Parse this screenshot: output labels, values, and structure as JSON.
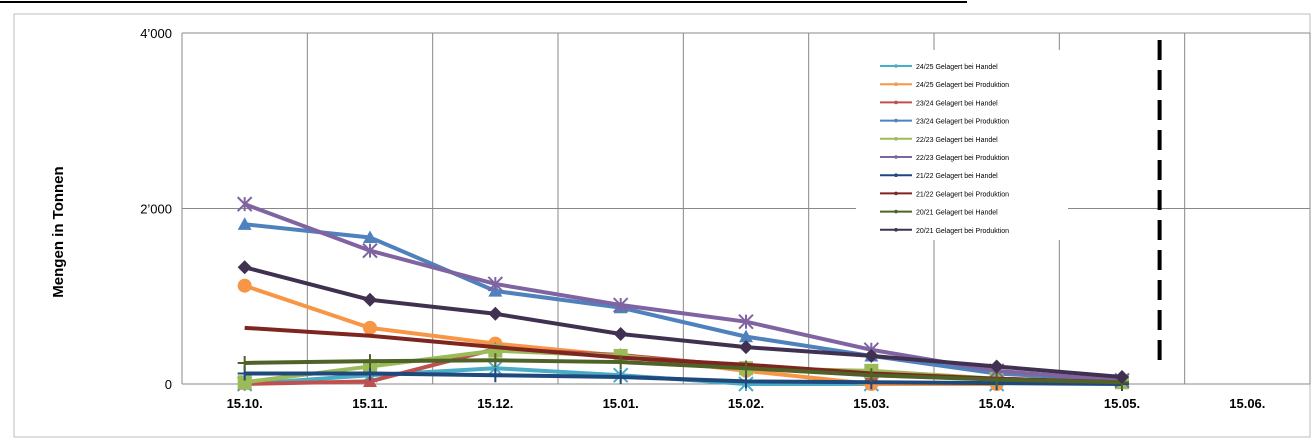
{
  "chart_data": {
    "type": "line",
    "title": "",
    "xlabel": "",
    "ylabel": "Mengen in Tonnen",
    "categories": [
      "15.10.",
      "15.11.",
      "15.12.",
      "15.01.",
      "15.02.",
      "15.03.",
      "15.04.",
      "15.05.",
      "15.06."
    ],
    "ylim": [
      0,
      4000
    ],
    "yticks": [
      0,
      2000,
      4000
    ],
    "ytick_labels": [
      "0",
      "2’000",
      "4’000"
    ],
    "grid": true,
    "legend_position": "top-right",
    "marker_line_position": 7.3,
    "series": [
      {
        "name": "24/25 Gelagert bei Handel",
        "color": "#4bacc6",
        "marker": "x",
        "values": [
          0,
          100,
          180,
          100,
          0,
          0,
          0,
          null,
          null
        ]
      },
      {
        "name": "24/25 Gelagert bei Produktion",
        "color": "#f79646",
        "marker": "circle",
        "values": [
          1120,
          640,
          460,
          320,
          150,
          0,
          0,
          null,
          null
        ]
      },
      {
        "name": "23/24 Gelagert bei Handel",
        "color": "#c0504d",
        "marker": "triangle",
        "values": [
          0,
          30,
          400,
          330,
          200,
          100,
          60,
          20,
          null
        ]
      },
      {
        "name": "23/24 Gelagert bei Produktion",
        "color": "#4f81bd",
        "marker": "triangle",
        "values": [
          1820,
          1670,
          1060,
          870,
          540,
          320,
          120,
          40,
          null
        ]
      },
      {
        "name": "22/23 Gelagert bei Handel",
        "color": "#9bbb59",
        "marker": "square",
        "values": [
          20,
          200,
          380,
          320,
          180,
          150,
          60,
          20,
          null
        ]
      },
      {
        "name": "22/23 Gelagert bei Produktion",
        "color": "#8064a2",
        "marker": "x",
        "values": [
          2050,
          1520,
          1140,
          900,
          710,
          390,
          150,
          40,
          null
        ]
      },
      {
        "name": "21/22 Gelagert bei Handel",
        "color": "#1f497d",
        "marker": "plus",
        "values": [
          120,
          120,
          100,
          80,
          30,
          20,
          10,
          0,
          null
        ]
      },
      {
        "name": "21/22 Gelagert bei Produktion",
        "color": "#7f2520",
        "marker": "none",
        "values": [
          640,
          550,
          420,
          300,
          220,
          120,
          60,
          20,
          null
        ]
      },
      {
        "name": "20/21 Gelagert bei Handel",
        "color": "#4f6228",
        "marker": "plus",
        "values": [
          240,
          260,
          270,
          250,
          180,
          100,
          50,
          20,
          null
        ]
      },
      {
        "name": "20/21 Gelagert bei Produktion",
        "color": "#403151",
        "marker": "diamond",
        "values": [
          1330,
          960,
          800,
          570,
          420,
          320,
          200,
          80,
          null
        ]
      }
    ]
  }
}
